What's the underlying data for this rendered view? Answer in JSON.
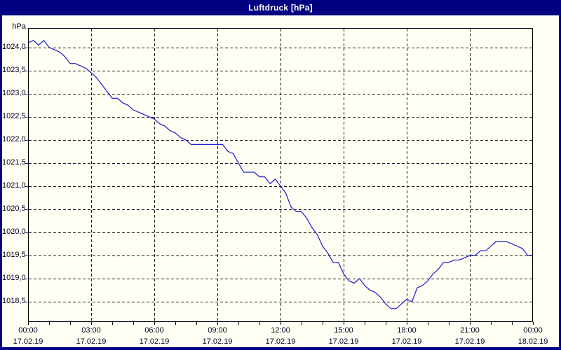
{
  "window": {
    "title": "Luftdruck [hPa]"
  },
  "colors": {
    "titlebar_bg": "#000080",
    "window_border": "#000080",
    "content_bg": "#FFFFF4",
    "line": "#2222CC",
    "grid": "#1a1a1a",
    "axis": "#000000",
    "label_text": "#000020",
    "title_text": "#FFFFFF"
  },
  "chart_data": {
    "type": "line",
    "title": "Luftdruck [hPa]",
    "ylabel": "hPa",
    "legend": "none",
    "grid": "dashed",
    "ylim": [
      1018.06,
      1024.42
    ],
    "x_range_hours": [
      0,
      24
    ],
    "sample_interval_hours": 0.25,
    "yticks": [
      {
        "value": 1024.0,
        "label": "1024,0"
      },
      {
        "value": 1023.5,
        "label": "1023,5"
      },
      {
        "value": 1023.0,
        "label": "1023,0"
      },
      {
        "value": 1022.5,
        "label": "1022,5"
      },
      {
        "value": 1022.0,
        "label": "1022,0"
      },
      {
        "value": 1021.5,
        "label": "1021,5"
      },
      {
        "value": 1021.0,
        "label": "1021,0"
      },
      {
        "value": 1020.5,
        "label": "1020,5"
      },
      {
        "value": 1020.0,
        "label": "1020,0"
      },
      {
        "value": 1019.5,
        "label": "1019,5"
      },
      {
        "value": 1019.0,
        "label": "1019,0"
      },
      {
        "value": 1018.5,
        "label": "1018,5"
      }
    ],
    "xticks": [
      {
        "hour": 0,
        "time": "00:00",
        "date": "17.02.19"
      },
      {
        "hour": 3,
        "time": "03:00",
        "date": "17.02.19"
      },
      {
        "hour": 6,
        "time": "06:00",
        "date": "17.02.19"
      },
      {
        "hour": 9,
        "time": "09:00",
        "date": "17.02.19"
      },
      {
        "hour": 12,
        "time": "12:00",
        "date": "17.02.19"
      },
      {
        "hour": 15,
        "time": "15:00",
        "date": "17.02.19"
      },
      {
        "hour": 18,
        "time": "18:00",
        "date": "17.02.19"
      },
      {
        "hour": 21,
        "time": "21:00",
        "date": "17.02.19"
      },
      {
        "hour": 24,
        "time": "00:00",
        "date": "18.02.19"
      }
    ],
    "minor_xtick_every_hours": 1,
    "values": [
      1024.1,
      1024.15,
      1024.05,
      1024.15,
      1024.0,
      1023.95,
      1023.9,
      1023.8,
      1023.65,
      1023.65,
      1023.6,
      1023.55,
      1023.45,
      1023.35,
      1023.2,
      1023.05,
      1022.9,
      1022.9,
      1022.8,
      1022.75,
      1022.65,
      1022.6,
      1022.55,
      1022.5,
      1022.45,
      1022.35,
      1022.3,
      1022.2,
      1022.15,
      1022.05,
      1022.0,
      1021.9,
      1021.9,
      1021.9,
      1021.9,
      1021.9,
      1021.9,
      1021.9,
      1021.75,
      1021.7,
      1021.5,
      1021.3,
      1021.3,
      1021.3,
      1021.2,
      1021.2,
      1021.05,
      1021.15,
      1021.0,
      1020.85,
      1020.55,
      1020.45,
      1020.45,
      1020.3,
      1020.1,
      1019.95,
      1019.7,
      1019.55,
      1019.35,
      1019.35,
      1019.1,
      1018.95,
      1018.9,
      1019.0,
      1018.85,
      1018.75,
      1018.7,
      1018.6,
      1018.45,
      1018.35,
      1018.35,
      1018.45,
      1018.55,
      1018.5,
      1018.8,
      1018.85,
      1018.95,
      1019.1,
      1019.2,
      1019.35,
      1019.35,
      1019.4,
      1019.4,
      1019.45,
      1019.5,
      1019.5,
      1019.6,
      1019.6,
      1019.7,
      1019.8,
      1019.8,
      1019.8,
      1019.75,
      1019.7,
      1019.65,
      1019.5,
      1019.5
    ]
  }
}
